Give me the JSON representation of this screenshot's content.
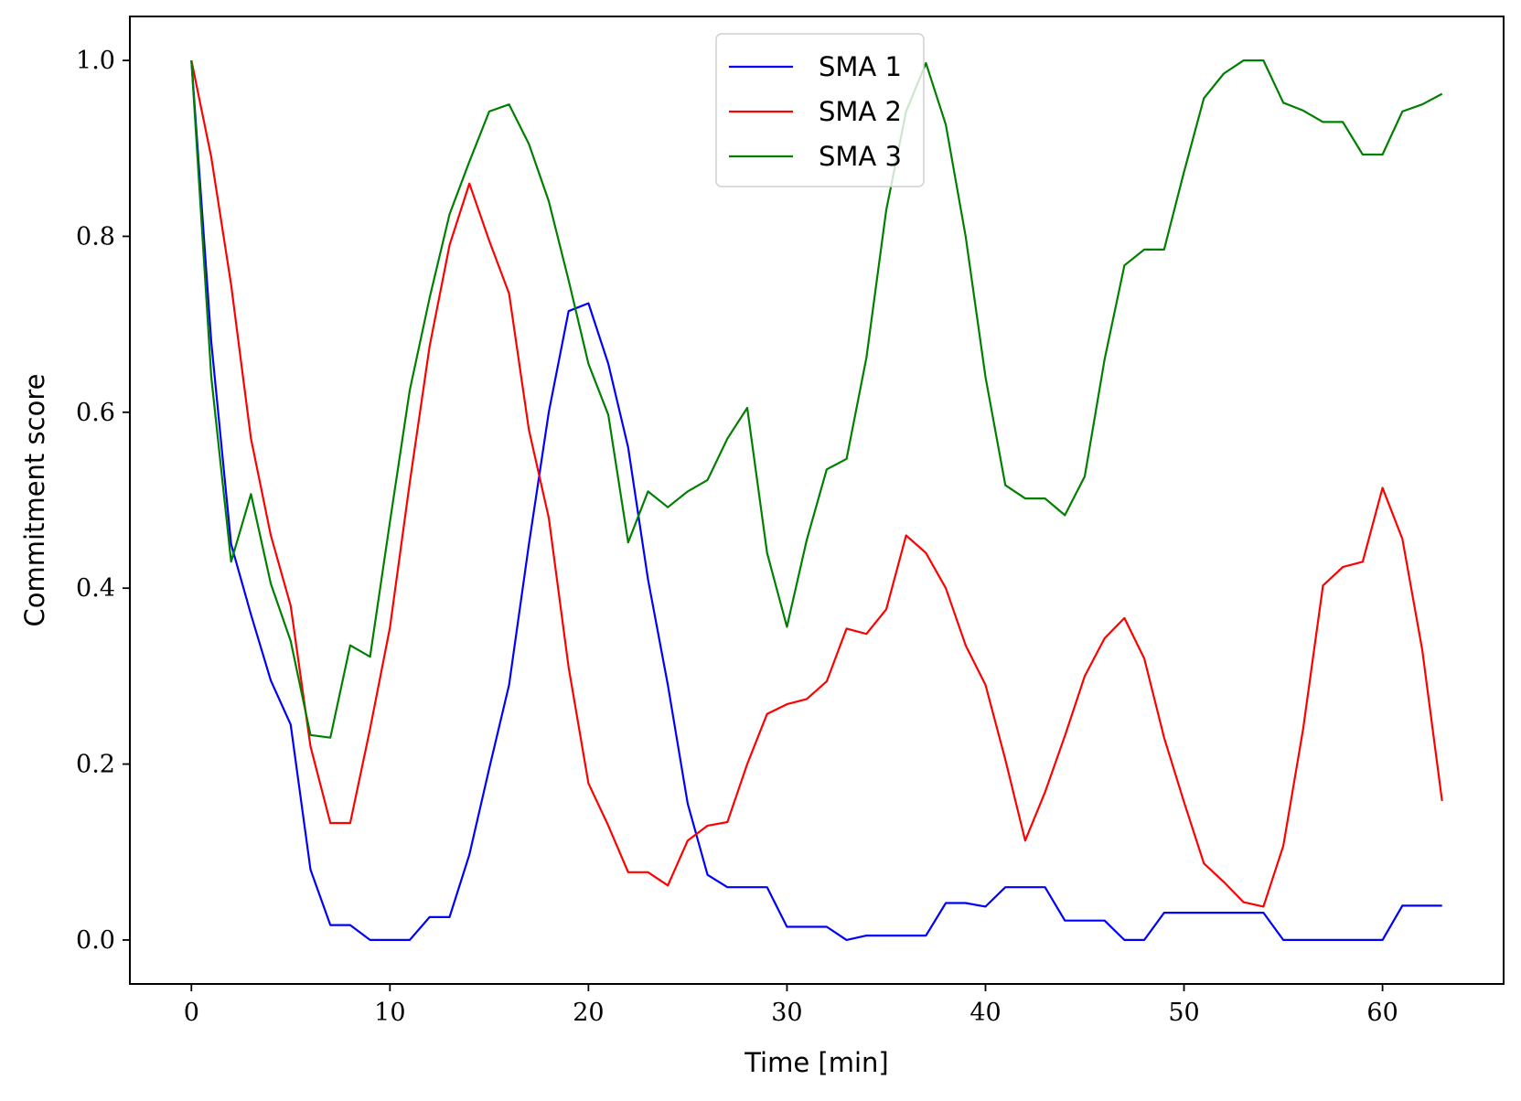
{
  "chart_data": {
    "type": "line",
    "xlabel": "Time [min]",
    "ylabel": "Commitment score",
    "xlim": [
      -3.1,
      66.1
    ],
    "ylim": [
      -0.05,
      1.05
    ],
    "xticks": [
      0,
      10,
      20,
      30,
      40,
      50,
      60
    ],
    "yticks": [
      0.0,
      0.2,
      0.4,
      0.6,
      0.8,
      1.0
    ],
    "xtick_labels": [
      "0",
      "10",
      "20",
      "30",
      "40",
      "50",
      "60"
    ],
    "ytick_labels": [
      "0.0",
      "0.2",
      "0.4",
      "0.6",
      "0.8",
      "1.0"
    ],
    "grid": false,
    "legend_position": "top-center",
    "x": [
      0,
      1,
      2,
      3,
      4,
      5,
      6,
      7,
      8,
      9,
      10,
      11,
      12,
      13,
      14,
      15,
      16,
      17,
      18,
      19,
      20,
      21,
      22,
      23,
      24,
      25,
      26,
      27,
      28,
      29,
      30,
      31,
      32,
      33,
      34,
      35,
      36,
      37,
      38,
      39,
      40,
      41,
      42,
      43,
      44,
      45,
      46,
      47,
      48,
      49,
      50,
      51,
      52,
      53,
      54,
      55,
      56,
      57,
      58,
      59,
      60,
      61,
      62,
      63
    ],
    "series": [
      {
        "name": "SMA 1",
        "color": "#0000ff",
        "values": [
          1.0,
          0.68,
          0.45,
          0.37,
          0.295,
          0.245,
          0.08,
          0.017,
          0.017,
          0.0,
          0.0,
          0.0,
          0.026,
          0.026,
          0.097,
          0.195,
          0.29,
          0.45,
          0.6,
          0.715,
          0.724,
          0.655,
          0.56,
          0.41,
          0.29,
          0.155,
          0.074,
          0.06,
          0.06,
          0.06,
          0.015,
          0.015,
          0.015,
          0.0,
          0.005,
          0.005,
          0.005,
          0.005,
          0.042,
          0.042,
          0.038,
          0.06,
          0.06,
          0.06,
          0.022,
          0.022,
          0.022,
          0.0,
          0.0,
          0.031,
          0.031,
          0.031,
          0.031,
          0.031,
          0.031,
          0.0,
          0.0,
          0.0,
          0.0,
          0.0,
          0.0,
          0.039,
          0.039,
          0.039
        ]
      },
      {
        "name": "SMA 2",
        "color": "#ff0000",
        "values": [
          1.0,
          0.89,
          0.745,
          0.57,
          0.46,
          0.38,
          0.22,
          0.133,
          0.133,
          0.24,
          0.355,
          0.52,
          0.675,
          0.79,
          0.86,
          0.795,
          0.735,
          0.58,
          0.48,
          0.31,
          0.178,
          0.13,
          0.077,
          0.077,
          0.062,
          0.113,
          0.13,
          0.134,
          0.2,
          0.257,
          0.268,
          0.274,
          0.294,
          0.354,
          0.348,
          0.376,
          0.46,
          0.44,
          0.4,
          0.335,
          0.29,
          0.205,
          0.113,
          0.168,
          0.232,
          0.3,
          0.343,
          0.366,
          0.32,
          0.23,
          0.157,
          0.087,
          0.066,
          0.043,
          0.038,
          0.107,
          0.24,
          0.403,
          0.424,
          0.43,
          0.514,
          0.456,
          0.33,
          0.158
        ]
      },
      {
        "name": "SMA 3",
        "color": "#008000",
        "values": [
          1.0,
          0.64,
          0.43,
          0.507,
          0.405,
          0.34,
          0.233,
          0.23,
          0.335,
          0.322,
          0.475,
          0.625,
          0.73,
          0.825,
          0.885,
          0.942,
          0.95,
          0.905,
          0.84,
          0.75,
          0.655,
          0.597,
          0.452,
          0.51,
          0.492,
          0.51,
          0.523,
          0.57,
          0.605,
          0.44,
          0.356,
          0.455,
          0.535,
          0.547,
          0.662,
          0.83,
          0.942,
          0.997,
          0.927,
          0.8,
          0.64,
          0.517,
          0.502,
          0.502,
          0.483,
          0.527,
          0.66,
          0.767,
          0.785,
          0.785,
          0.873,
          0.957,
          0.985,
          1.0,
          1.0,
          0.952,
          0.943,
          0.93,
          0.93,
          0.893,
          0.893,
          0.942,
          0.95,
          0.962
        ]
      }
    ]
  }
}
